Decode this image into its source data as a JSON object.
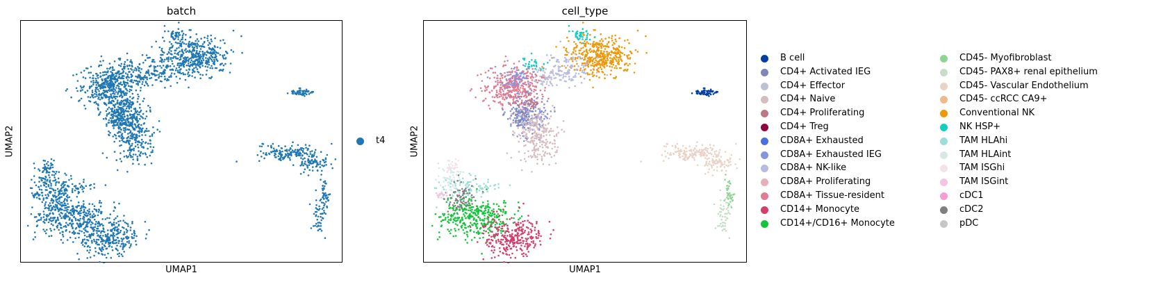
{
  "chart_data": [
    {
      "type": "scatter",
      "title": "batch",
      "xlabel": "UMAP1",
      "ylabel": "UMAP2",
      "xticks": "none",
      "yticks": "none",
      "legend_position": "right",
      "legend": [
        {
          "label": "t4",
          "color": "#1f77b4"
        }
      ]
    },
    {
      "type": "scatter",
      "title": "cell_type",
      "xlabel": "UMAP1",
      "ylabel": "UMAP2",
      "xticks": "none",
      "yticks": "none",
      "legend_position": "right",
      "legend": [
        {
          "label": "B cell",
          "color": "#023fa5"
        },
        {
          "label": "CD4+ Activated IEG",
          "color": "#7d87b9"
        },
        {
          "label": "CD4+ Effector",
          "color": "#bec1d4"
        },
        {
          "label": "CD4+ Naive",
          "color": "#d6bcc0"
        },
        {
          "label": "CD4+ Proliferating",
          "color": "#bb7784"
        },
        {
          "label": "CD4+ Treg",
          "color": "#8e063b"
        },
        {
          "label": "CD8A+ Exhausted",
          "color": "#4a6fe3"
        },
        {
          "label": "CD8A+ Exhausted IEG",
          "color": "#8595e1"
        },
        {
          "label": "CD8A+ NK-like",
          "color": "#b5bbe3"
        },
        {
          "label": "CD8A+ Proliferating",
          "color": "#e6afb9"
        },
        {
          "label": "CD8A+ Tissue-resident",
          "color": "#e07b91"
        },
        {
          "label": "CD14+ Monocyte",
          "color": "#d33f6a"
        },
        {
          "label": "CD14+/CD16+ Monocyte",
          "color": "#11c638"
        },
        {
          "label": "CD45- Myofibroblast",
          "color": "#8dd593"
        },
        {
          "label": "CD45- PAX8+ renal epithelium",
          "color": "#c6dec7"
        },
        {
          "label": "CD45- Vascular Endothelium",
          "color": "#ead3c6"
        },
        {
          "label": "CD45- ccRCC CA9+",
          "color": "#f0b98d"
        },
        {
          "label": "Conventional NK",
          "color": "#ef9708"
        },
        {
          "label": "NK HSP+",
          "color": "#0fcfc0"
        },
        {
          "label": "TAM HLAhi",
          "color": "#9cded6"
        },
        {
          "label": "TAM HLAint",
          "color": "#d5eae7"
        },
        {
          "label": "TAM ISGhi",
          "color": "#f3e1eb"
        },
        {
          "label": "TAM ISGint",
          "color": "#f6c4e1"
        },
        {
          "label": "cDC1",
          "color": "#f79cd4"
        },
        {
          "label": "cDC2",
          "color": "#7f7f7f"
        },
        {
          "label": "pDC",
          "color": "#c7c7c7"
        }
      ]
    }
  ]
}
